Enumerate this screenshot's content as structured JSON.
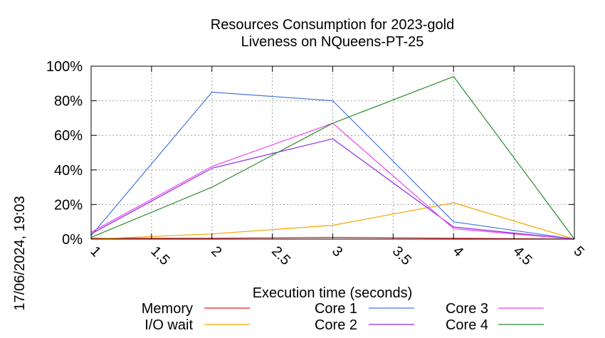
{
  "chart_data": {
    "type": "line",
    "title_line1": "Resources Consumption for 2023-gold",
    "title_line2": "Liveness on NQueens-PT-25",
    "xlabel": "Execution time (seconds)",
    "side_label": "17/06/2024, 19:03",
    "xlim": [
      1,
      5
    ],
    "ylim": [
      0,
      100
    ],
    "x_ticks": [
      "1",
      "1.5",
      "2",
      "2.5",
      "3",
      "3.5",
      "4",
      "4.5",
      "5"
    ],
    "y_ticks": [
      "0%",
      "20%",
      "40%",
      "60%",
      "80%",
      "100%"
    ],
    "grid": true,
    "legend_position": "bottom",
    "series": [
      {
        "name": "Memory",
        "color": "#e8191c",
        "x": [
          1,
          2,
          3,
          4,
          5
        ],
        "y": [
          0.5,
          0.5,
          1,
          0.5,
          0
        ]
      },
      {
        "name": "I/O wait",
        "color": "#f4a300",
        "x": [
          1,
          2,
          3,
          4,
          5
        ],
        "y": [
          0,
          3,
          8,
          21,
          0
        ]
      },
      {
        "name": "Core 1",
        "color": "#4477dd",
        "x": [
          1,
          2,
          3,
          4,
          5
        ],
        "y": [
          2,
          85,
          80,
          10,
          0
        ]
      },
      {
        "name": "Core 2",
        "color": "#8a2be2",
        "x": [
          1,
          2,
          3,
          4,
          5
        ],
        "y": [
          3,
          41,
          58,
          7,
          0
        ]
      },
      {
        "name": "Core 3",
        "color": "#ee44ee",
        "x": [
          1,
          2,
          3,
          4,
          5
        ],
        "y": [
          4,
          42,
          67,
          6,
          0
        ]
      },
      {
        "name": "Core 4",
        "color": "#2e8b2e",
        "x": [
          1,
          2,
          3,
          4,
          5
        ],
        "y": [
          1,
          30,
          67,
          94,
          0
        ]
      }
    ]
  }
}
